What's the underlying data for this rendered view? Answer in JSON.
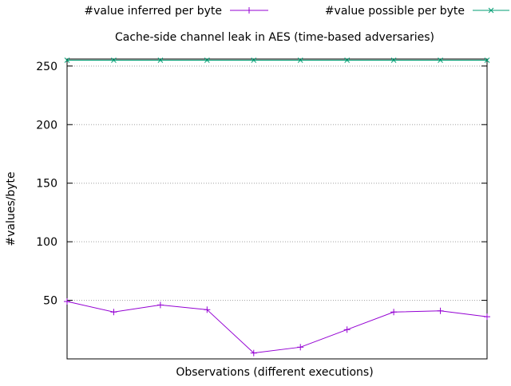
{
  "chart_data": {
    "type": "line",
    "title": "Cache-side channel leak in AES (time-based adversaries)",
    "xlabel": "Observations (different executions)",
    "ylabel": "#values/byte",
    "x": [
      1,
      2,
      3,
      4,
      5,
      6,
      7,
      8,
      9,
      10
    ],
    "xlim": [
      1,
      10
    ],
    "ylim": [
      0,
      256
    ],
    "yticks": [
      50,
      100,
      150,
      200,
      250
    ],
    "grid": "horizontal dotted",
    "legend_position": "top",
    "series": [
      {
        "name": "#value inferred per byte",
        "color": "#9400d3",
        "marker": "plus",
        "values": [
          49,
          40,
          46,
          42,
          5,
          10,
          25,
          40,
          41,
          36
        ]
      },
      {
        "name": "#value possible per byte",
        "color": "#009e73",
        "marker": "cross",
        "values": [
          255,
          255,
          255,
          255,
          255,
          255,
          255,
          255,
          255,
          255
        ]
      }
    ]
  }
}
